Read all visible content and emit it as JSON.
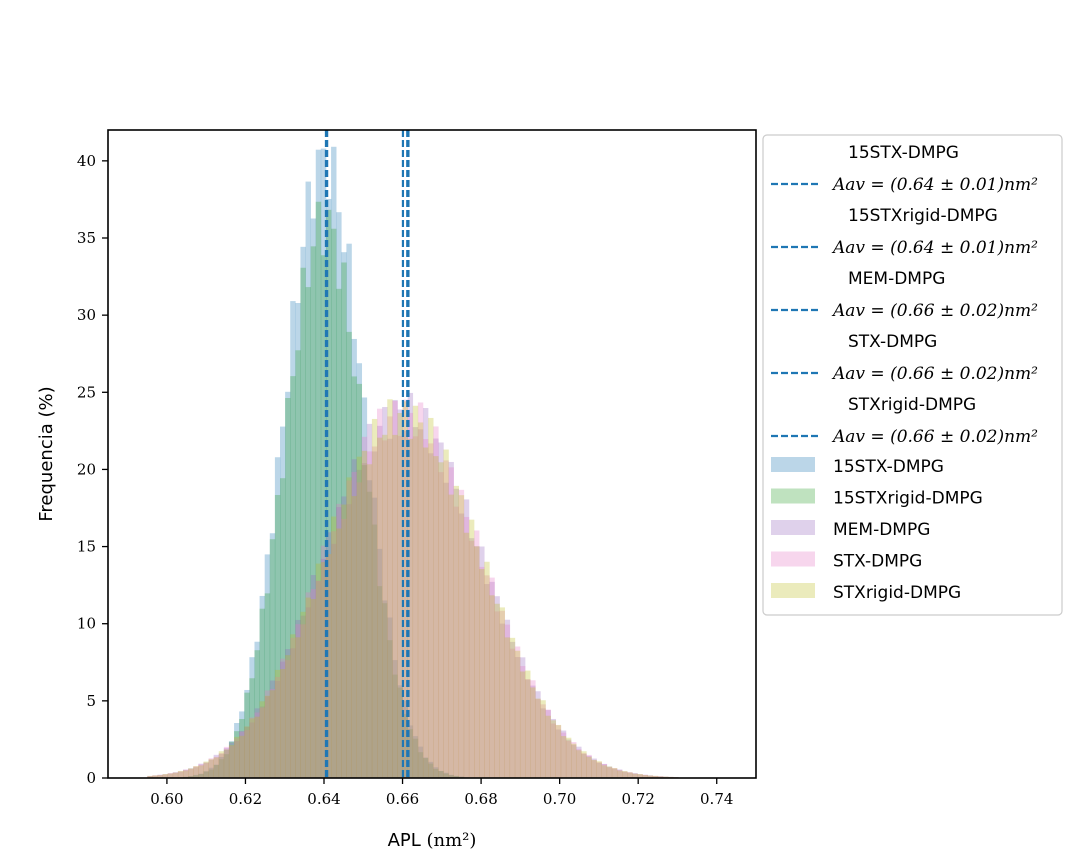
{
  "chart_data": {
    "type": "histogram",
    "xlabel": "APL",
    "xlabel_unit_math": "(nm²)",
    "ylabel": "Frequencia (%)",
    "xlim": [
      0.585,
      0.75
    ],
    "ylim": [
      0,
      42
    ],
    "x_ticks": [
      "0.60",
      "0.62",
      "0.64",
      "0.66",
      "0.68",
      "0.70",
      "0.72",
      "0.74"
    ],
    "y_ticks": [
      "0",
      "5",
      "10",
      "15",
      "20",
      "25",
      "30",
      "35",
      "40"
    ],
    "grid": false,
    "legend_placement": "outside-right-top",
    "series": [
      {
        "name": "15STX-DMPG",
        "color": "#1f77b4",
        "mean": 0.64,
        "std": 0.01,
        "peak": 40,
        "avg_line_x": 0.6405,
        "avg_label": "Aav = (0.64 ± 0.01)nm²"
      },
      {
        "name": "15STXrigid-DMPG",
        "color": "#2ca02c",
        "mean": 0.64,
        "std": 0.01,
        "peak": 36,
        "avg_line_x": 0.6408,
        "avg_label": "Aav = (0.64 ± 0.01)nm²"
      },
      {
        "name": "MEM-DMPG",
        "color": "#9467bd",
        "mean": 0.66,
        "std": 0.02,
        "peak": 23.7,
        "avg_line_x": 0.6601,
        "avg_label": "Aav = (0.66 ± 0.02)nm²"
      },
      {
        "name": "STX-DMPG",
        "color": "#e377c2",
        "mean": 0.66,
        "std": 0.02,
        "peak": 23.6,
        "avg_line_x": 0.6612,
        "avg_label": "Aav = (0.66 ± 0.02)nm²"
      },
      {
        "name": "STXrigid-DMPG",
        "color": "#bcbd22",
        "mean": 0.66,
        "std": 0.02,
        "peak": 23.5,
        "avg_line_x": 0.6615,
        "avg_label": "Aav = (0.66 ± 0.02)nm²"
      }
    ],
    "avg_line_color": "#1f77b4"
  }
}
